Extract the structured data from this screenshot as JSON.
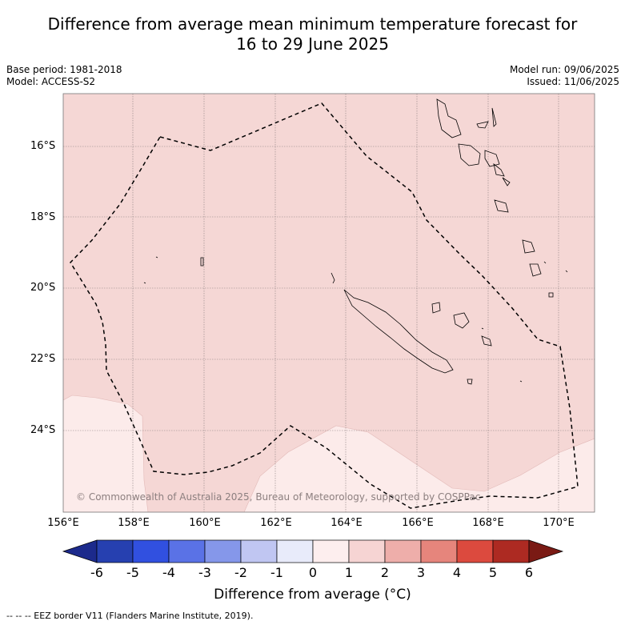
{
  "title_line1": "Difference from average mean minimum temperature forecast for",
  "title_line2": "16 to 29 June 2025",
  "base_period": "Base period: 1981-2018",
  "model": "Model: ACCESS-S2",
  "model_run": "Model run: 09/06/2025",
  "issued": "Issued: 11/06/2025",
  "copyright": "© Commonwealth of Australia 2025, Bureau of Meteorology, supported by COSPPac",
  "lat_ticks": [
    "16°S",
    "18°S",
    "20°S",
    "22°S",
    "24°S"
  ],
  "lon_ticks": [
    "156°E",
    "158°E",
    "160°E",
    "162°E",
    "164°E",
    "166°E",
    "168°E",
    "170°E"
  ],
  "colorbar": {
    "title": "Difference from average (°C)",
    "ticks": [
      "-6",
      "-5",
      "-4",
      "-3",
      "-2",
      "-1",
      "0",
      "1",
      "2",
      "3",
      "4",
      "5",
      "6"
    ],
    "colors": [
      "#1c2a8c",
      "#2640b0",
      "#3150e0",
      "#5a72e6",
      "#8597ea",
      "#c0c6f2",
      "#e8ebfa",
      "#fdeeee",
      "#f6d4d3",
      "#eeaeaa",
      "#e6857c",
      "#dc4a3e",
      "#ad2a22",
      "#7a1a14"
    ]
  },
  "footnote": "-- -- -- EEZ border V11 (Flanders Marine Institute, 2019).",
  "colors": {
    "anomaly_1_to_2": "#f5d7d5",
    "anomaly_0_to_1": "#fcebea",
    "eez_border": "#000000"
  }
}
